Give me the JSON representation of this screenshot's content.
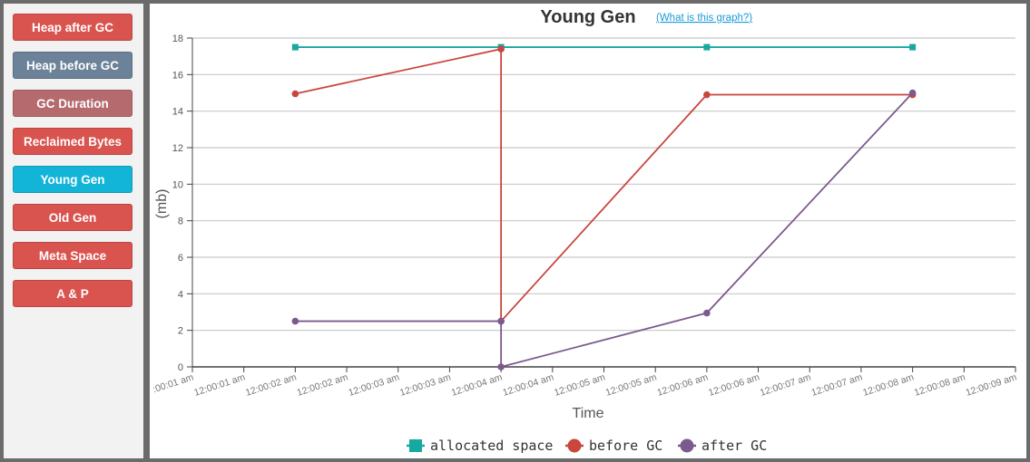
{
  "sidebar": {
    "buttons": [
      {
        "label": "Heap after GC",
        "color": "#d9534f"
      },
      {
        "label": "Heap before GC",
        "color": "#6b8299"
      },
      {
        "label": "GC Duration",
        "color": "#b56a6e"
      },
      {
        "label": "Reclaimed Bytes",
        "color": "#d9534f"
      },
      {
        "label": "Young Gen",
        "color": "#12b5d8"
      },
      {
        "label": "Old Gen",
        "color": "#d9534f"
      },
      {
        "label": "Meta Space",
        "color": "#d9534f"
      },
      {
        "label": "A & P",
        "color": "#d9534f"
      }
    ]
  },
  "chart_data": {
    "type": "line",
    "title": "Young Gen",
    "help_link": "(What is this graph?)",
    "xlabel": "Time",
    "ylabel": "(mb)",
    "ylim": [
      0,
      18
    ],
    "yticks": [
      "0",
      "2",
      "4",
      "6",
      "8",
      "10",
      "12",
      "14",
      "16",
      "18"
    ],
    "x_tick_labels": [
      ":00:01 am",
      "12:00:01 am",
      "12:00:02 am",
      "12:00:02 am",
      "12:00:03 am",
      "12:00:03 am",
      "12:00:04 am",
      "12:00:04 am",
      "12:00:05 am",
      "12:00:05 am",
      "12:00:06 am",
      "12:00:06 am",
      "12:00:07 am",
      "12:00:07 am",
      "12:00:08 am",
      "12:00:08 am",
      "12:00:09 am"
    ],
    "xlim": [
      1,
      9
    ],
    "series": [
      {
        "name": "allocated space",
        "color": "#17a89f",
        "marker": "square",
        "points": [
          [
            2,
            17.5
          ],
          [
            4,
            17.5
          ],
          [
            6,
            17.5
          ],
          [
            8,
            17.5
          ]
        ]
      },
      {
        "name": "before GC",
        "color": "#c9463d",
        "marker": "circle",
        "points": [
          [
            2,
            14.95
          ],
          [
            4,
            17.4
          ],
          [
            4,
            2.5
          ],
          [
            6,
            14.9
          ],
          [
            8,
            14.9
          ]
        ]
      },
      {
        "name": "after GC",
        "color": "#7b5a8e",
        "marker": "circle",
        "points": [
          [
            2,
            2.5
          ],
          [
            4,
            2.5
          ],
          [
            4,
            0
          ],
          [
            6,
            2.95
          ],
          [
            8,
            15.0
          ]
        ]
      }
    ]
  }
}
